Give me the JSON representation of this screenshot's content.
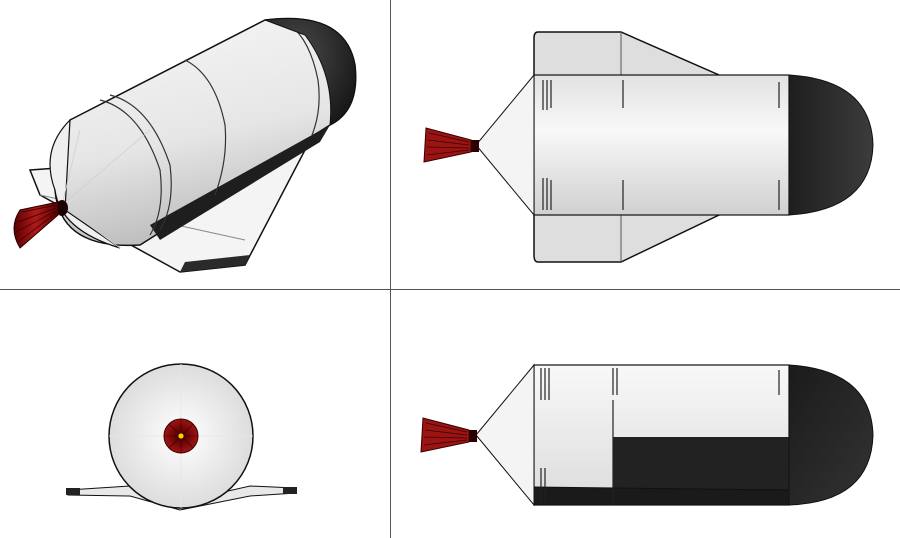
{
  "figure": {
    "views": [
      {
        "id": "isometric",
        "name": "isometric-view"
      },
      {
        "id": "top",
        "name": "top-view"
      },
      {
        "id": "front",
        "name": "front-view"
      },
      {
        "id": "side",
        "name": "side-view"
      }
    ]
  },
  "colors": {
    "hull": "#f2f2f2",
    "hull_shade": "#c9c9c9",
    "nose": "#262626",
    "nozzle": "#8b0f0f",
    "nozzle_dark": "#3a0000",
    "divider": "#555555",
    "outline": "#111111"
  }
}
